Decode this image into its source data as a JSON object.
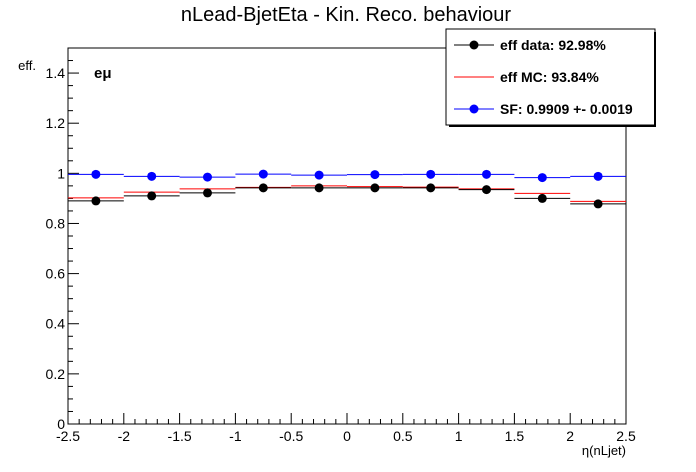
{
  "chart_data": {
    "type": "scatter",
    "title": "nLead-BjetEta - Kin. Reco. behaviour",
    "xlabel": "η(nLjet)",
    "ylabel": "eff.",
    "xlim": [
      -2.5,
      2.5
    ],
    "ylim": [
      0,
      1.5
    ],
    "x_ticks": [
      "-2.5",
      "-2",
      "-1.5",
      "-1",
      "-0.5",
      "0",
      "0.5",
      "1",
      "1.5",
      "2",
      "2.5"
    ],
    "y_ticks": [
      "0",
      "0.2",
      "0.4",
      "0.6",
      "0.8",
      "1",
      "1.2",
      "1.4"
    ],
    "bin_edges": [
      -2.5,
      -2.0,
      -1.5,
      -1.0,
      -0.5,
      0.0,
      0.5,
      1.0,
      1.5,
      2.0,
      2.5
    ],
    "bin_centers": [
      -2.25,
      -1.75,
      -1.25,
      -0.75,
      -0.25,
      0.25,
      0.75,
      1.25,
      1.75,
      2.25
    ],
    "series": [
      {
        "name": "eff data",
        "style": "markers",
        "color": "#000000",
        "values": [
          0.89,
          0.91,
          0.922,
          0.942,
          0.942,
          0.942,
          0.942,
          0.935,
          0.9,
          0.878
        ]
      },
      {
        "name": "eff MC",
        "style": "histogram",
        "color": "#ff0000",
        "values": [
          0.902,
          0.925,
          0.938,
          0.944,
          0.95,
          0.947,
          0.945,
          0.938,
          0.92,
          0.888
        ]
      },
      {
        "name": "SF",
        "style": "markers",
        "color": "#0000ff",
        "values": [
          0.996,
          0.988,
          0.985,
          0.997,
          0.993,
          0.995,
          0.996,
          0.996,
          0.983,
          0.988
        ]
      }
    ],
    "legend": {
      "position": "top-right",
      "entries": [
        {
          "label": "eff data: 92.98%",
          "color": "#000000",
          "marker": "circle"
        },
        {
          "label": "eff MC: 93.84%",
          "color": "#ff0000",
          "marker": "line"
        },
        {
          "label": "SF: 0.9909 +- 0.0019",
          "color": "#0000ff",
          "marker": "circle"
        }
      ]
    },
    "annotation": "eμ"
  }
}
